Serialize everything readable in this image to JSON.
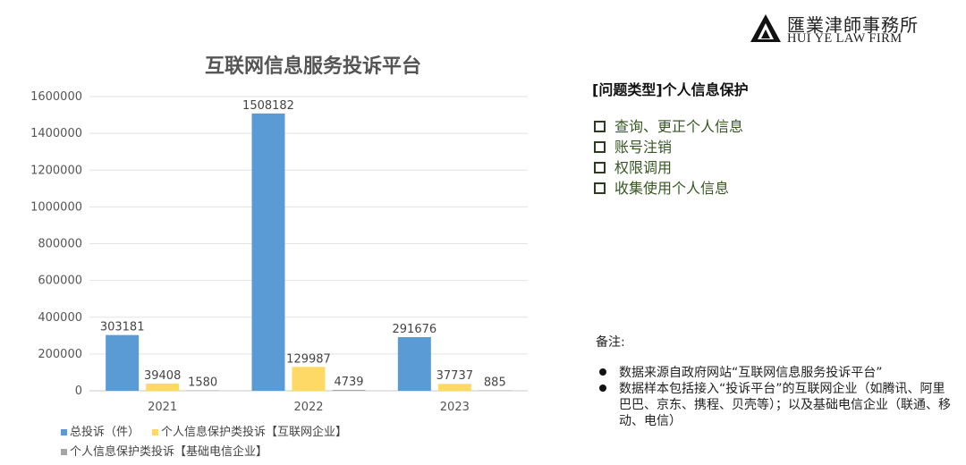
{
  "chart_data": {
    "type": "bar",
    "title": "互联网信息服务投诉平台",
    "categories": [
      "2021",
      "2022",
      "2023"
    ],
    "series": [
      {
        "name": "总投诉（件）",
        "values": [
          303181,
          1508182,
          291676
        ],
        "color": "#5b9bd5"
      },
      {
        "name": "个人信息保护类投诉【互联网企业】",
        "values": [
          39408,
          129987,
          37737
        ],
        "color": "#ffd966"
      },
      {
        "name": "个人信息保护类投诉【基础电信企业】",
        "values": [
          1580,
          4739,
          885
        ],
        "color": "#a5a5a5"
      }
    ],
    "ylim": [
      0,
      1600000
    ],
    "yticks": [
      0,
      200000,
      400000,
      600000,
      800000,
      1000000,
      1200000,
      1400000,
      1600000
    ],
    "grid": true,
    "legend": "bottom"
  },
  "logo": {
    "name_cn": "匯業津師事務所",
    "name_en": "HUI YE LAW FIRM"
  },
  "panel": {
    "heading": "[问题类型]个人信息保护",
    "items": [
      "查询、更正个人信息",
      "账号注销",
      "权限调用",
      "收集使用个人信息"
    ],
    "notes_label": "备注:",
    "notes": [
      "数据来源自政府网站“互联网信息服务投诉平台”",
      "数据样本包括接入“投诉平台”的互联网企业（如腾讯、阿里巴巴、京东、携程、贝壳等）；以及基础电信企业（联通、移动、电信）"
    ]
  }
}
